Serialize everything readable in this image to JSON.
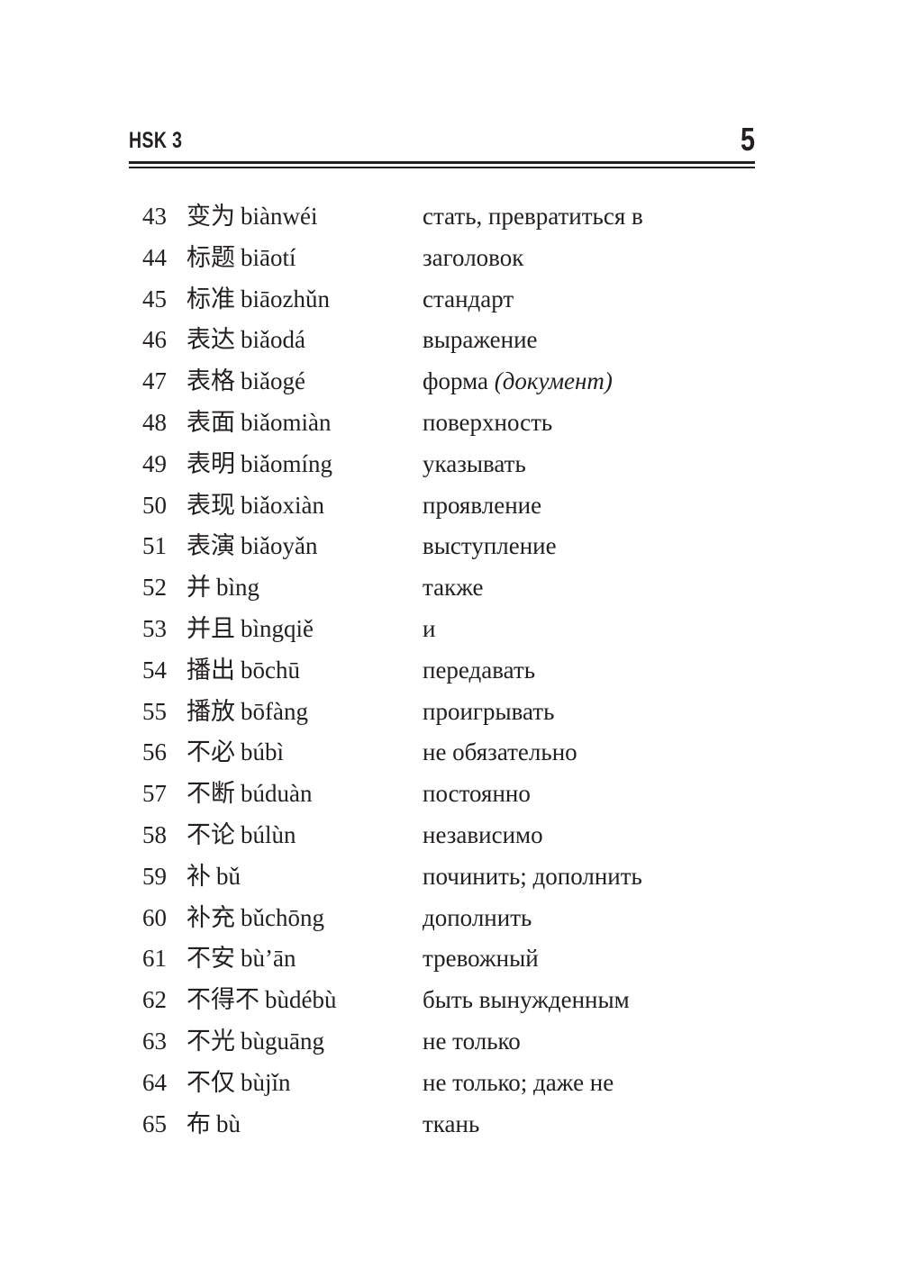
{
  "header": {
    "title": "HSK 3",
    "page_number": "5"
  },
  "entries": [
    {
      "num": "43",
      "hanzi": "变为",
      "pinyin": "biànwéi",
      "translation": "стать, превратиться в",
      "note": ""
    },
    {
      "num": "44",
      "hanzi": "标题",
      "pinyin": "biāotí",
      "translation": "заголовок",
      "note": ""
    },
    {
      "num": "45",
      "hanzi": "标准",
      "pinyin": "biāozhǔn",
      "translation": "стандарт",
      "note": ""
    },
    {
      "num": "46",
      "hanzi": "表达",
      "pinyin": "biǎodá",
      "translation": "выражение",
      "note": ""
    },
    {
      "num": "47",
      "hanzi": "表格",
      "pinyin": "biǎogé",
      "translation": "форма",
      "note": "(документ)"
    },
    {
      "num": "48",
      "hanzi": "表面",
      "pinyin": "biǎomiàn",
      "translation": "поверхность",
      "note": ""
    },
    {
      "num": "49",
      "hanzi": "表明",
      "pinyin": "biǎomíng",
      "translation": "указывать",
      "note": ""
    },
    {
      "num": "50",
      "hanzi": "表现",
      "pinyin": "biǎoxiàn",
      "translation": "проявление",
      "note": ""
    },
    {
      "num": "51",
      "hanzi": "表演",
      "pinyin": "biǎoyǎn",
      "translation": "выступление",
      "note": ""
    },
    {
      "num": "52",
      "hanzi": "并",
      "pinyin": "bìng",
      "translation": "также",
      "note": ""
    },
    {
      "num": "53",
      "hanzi": "并且",
      "pinyin": "bìngqiě",
      "translation": "и",
      "note": ""
    },
    {
      "num": "54",
      "hanzi": "播出",
      "pinyin": "bōchū",
      "translation": "передавать",
      "note": ""
    },
    {
      "num": "55",
      "hanzi": "播放",
      "pinyin": "bōfàng",
      "translation": "проигрывать",
      "note": ""
    },
    {
      "num": "56",
      "hanzi": "不必",
      "pinyin": "búbì",
      "translation": "не обязательно",
      "note": ""
    },
    {
      "num": "57",
      "hanzi": "不断",
      "pinyin": "búduàn",
      "translation": "постоянно",
      "note": ""
    },
    {
      "num": "58",
      "hanzi": "不论",
      "pinyin": "búlùn",
      "translation": "независимо",
      "note": ""
    },
    {
      "num": "59",
      "hanzi": "补",
      "pinyin": "bǔ",
      "translation": "починить; дополнить",
      "note": ""
    },
    {
      "num": "60",
      "hanzi": "补充",
      "pinyin": "bǔchōng",
      "translation": "дополнить",
      "note": ""
    },
    {
      "num": "61",
      "hanzi": "不安",
      "pinyin": "bù’ān",
      "translation": "тревожный",
      "note": ""
    },
    {
      "num": "62",
      "hanzi": "不得不",
      "pinyin": "bùdébù",
      "translation": "быть вынужденным",
      "note": ""
    },
    {
      "num": "63",
      "hanzi": "不光",
      "pinyin": "bùguāng",
      "translation": "не только",
      "note": ""
    },
    {
      "num": "64",
      "hanzi": "不仅",
      "pinyin": "bùjǐn",
      "translation": "не только; даже не",
      "note": ""
    },
    {
      "num": "65",
      "hanzi": "布",
      "pinyin": "bù",
      "translation": "ткань",
      "note": ""
    }
  ]
}
